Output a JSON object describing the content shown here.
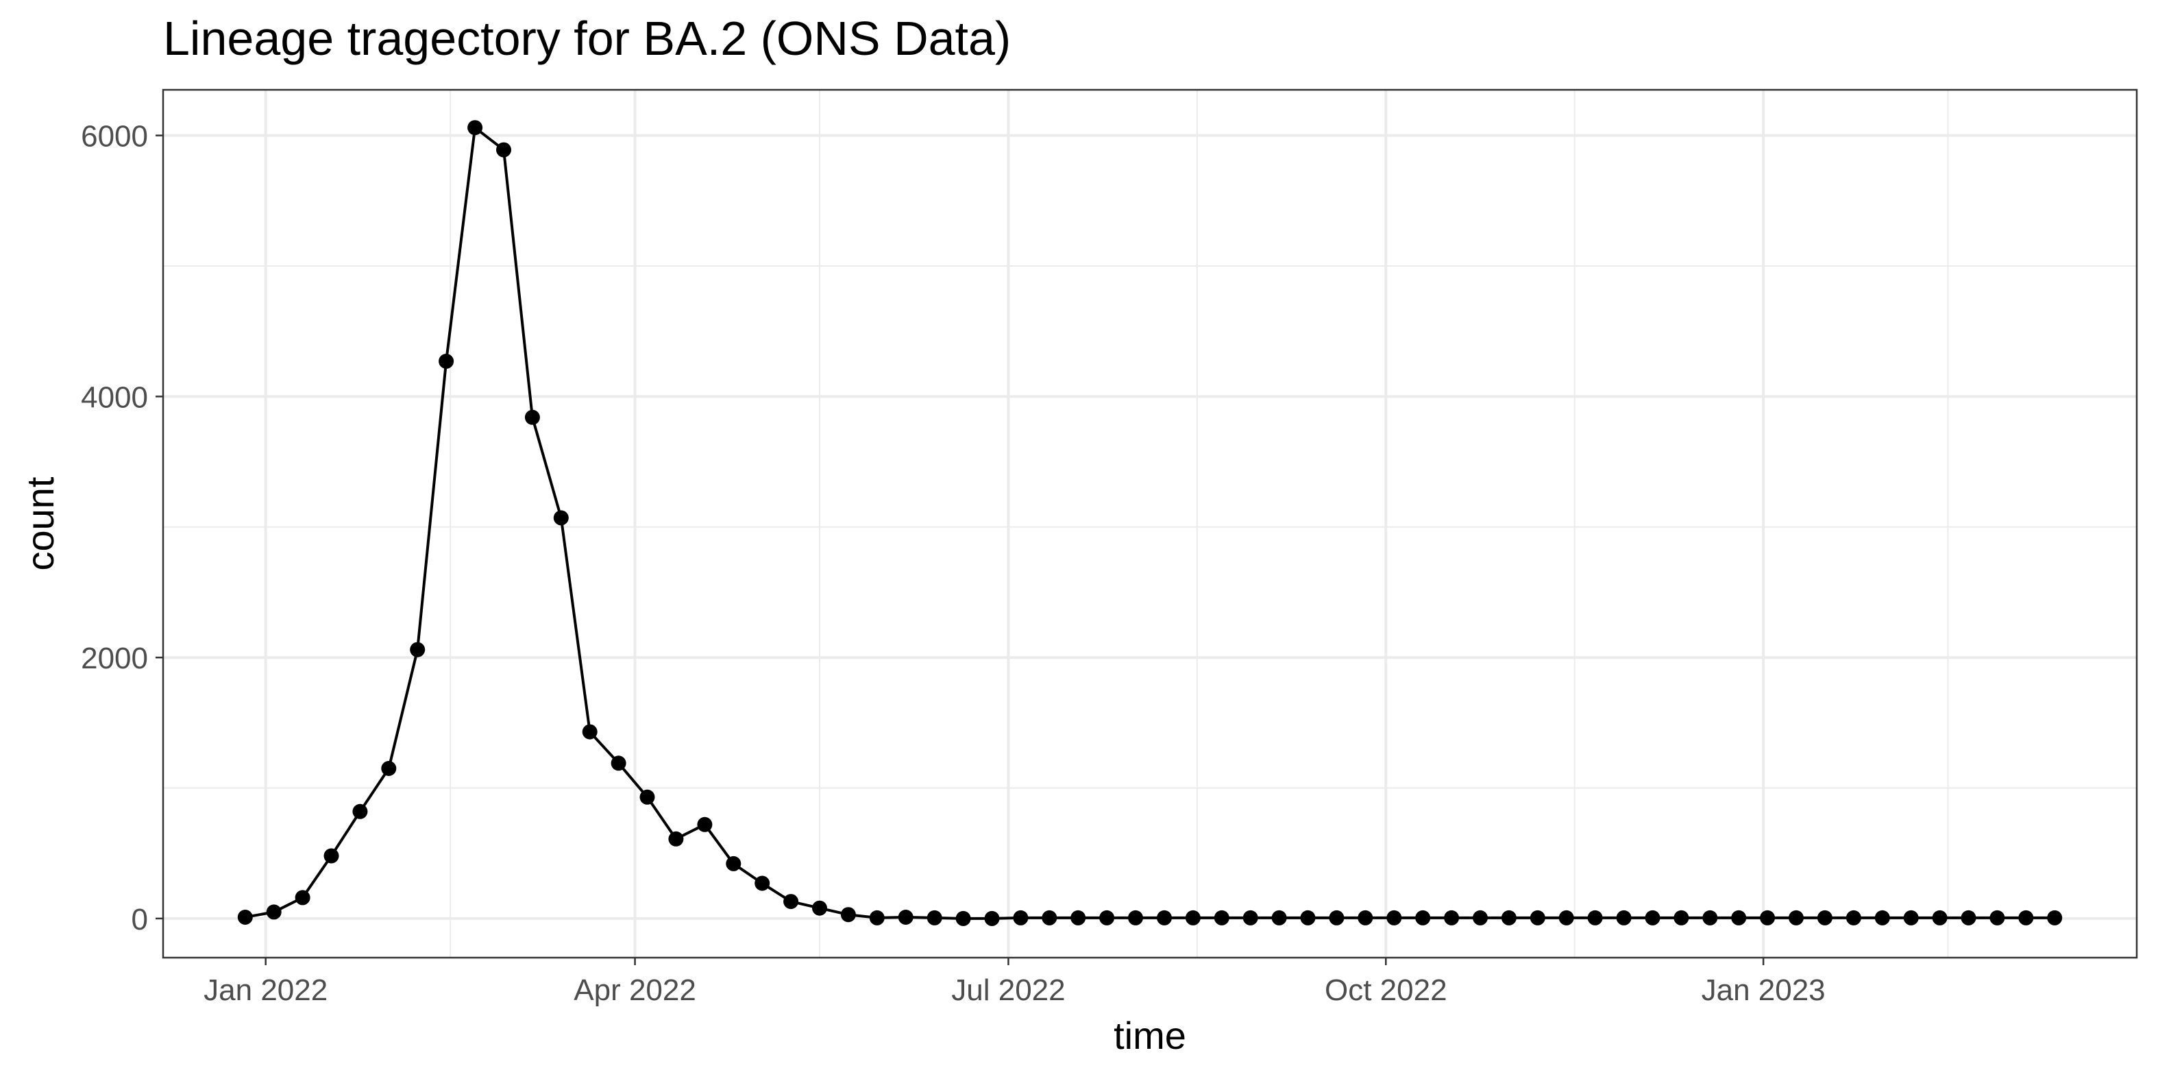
{
  "chart_data": {
    "type": "line",
    "title": "Lineage tragectory for BA.2 (ONS Data)",
    "xlabel": "time",
    "ylabel": "count",
    "x_axis_type": "date",
    "xlim": [
      "2021-12-07",
      "2023-04-02"
    ],
    "ylim": [
      -300,
      6350
    ],
    "grid": true,
    "x_ticks": [
      {
        "date": "2022-01-01",
        "label": "Jan 2022"
      },
      {
        "date": "2022-04-01",
        "label": "Apr 2022"
      },
      {
        "date": "2022-07-01",
        "label": "Jul 2022"
      },
      {
        "date": "2022-10-01",
        "label": "Oct 2022"
      },
      {
        "date": "2023-01-01",
        "label": "Jan 2023"
      }
    ],
    "x_minor_ticks": [
      "2022-02-15",
      "2022-05-16",
      "2022-08-16",
      "2022-11-16",
      "2023-02-15"
    ],
    "y_ticks": [
      0,
      2000,
      4000,
      6000
    ],
    "y_minor_ticks": [
      1000,
      3000,
      5000
    ],
    "series": [
      {
        "color": "#000000",
        "marker": "circle",
        "x": [
          "2021-12-27",
          "2022-01-03",
          "2022-01-10",
          "2022-01-17",
          "2022-01-24",
          "2022-01-31",
          "2022-02-07",
          "2022-02-14",
          "2022-02-21",
          "2022-02-28",
          "2022-03-07",
          "2022-03-14",
          "2022-03-21",
          "2022-03-28",
          "2022-04-04",
          "2022-04-11",
          "2022-04-18",
          "2022-04-25",
          "2022-05-02",
          "2022-05-09",
          "2022-05-16",
          "2022-05-23",
          "2022-05-30",
          "2022-06-06",
          "2022-06-13",
          "2022-06-20",
          "2022-06-27",
          "2022-07-04",
          "2022-07-11",
          "2022-07-18",
          "2022-07-25",
          "2022-08-01",
          "2022-08-08",
          "2022-08-15",
          "2022-08-22",
          "2022-08-29",
          "2022-09-05",
          "2022-09-12",
          "2022-09-19",
          "2022-09-26",
          "2022-10-03",
          "2022-10-10",
          "2022-10-17",
          "2022-10-24",
          "2022-10-31",
          "2022-11-07",
          "2022-11-14",
          "2022-11-21",
          "2022-11-28",
          "2022-12-05",
          "2022-12-12",
          "2022-12-19",
          "2022-12-26",
          "2023-01-02",
          "2023-01-09",
          "2023-01-16",
          "2023-01-23",
          "2023-01-30",
          "2023-02-06",
          "2023-02-13",
          "2023-02-20",
          "2023-02-27",
          "2023-03-06",
          "2023-03-13"
        ],
        "y": [
          10,
          50,
          160,
          480,
          820,
          1150,
          2060,
          4270,
          6060,
          5890,
          3840,
          3070,
          1430,
          1190,
          930,
          610,
          720,
          420,
          270,
          130,
          80,
          30,
          5,
          10,
          5,
          0,
          0,
          5,
          5,
          5,
          5,
          5,
          5,
          5,
          5,
          5,
          5,
          5,
          5,
          5,
          5,
          5,
          5,
          5,
          5,
          5,
          5,
          5,
          5,
          5,
          5,
          5,
          5,
          5,
          5,
          5,
          5,
          5,
          5,
          5,
          5,
          5,
          5,
          5
        ]
      }
    ]
  }
}
